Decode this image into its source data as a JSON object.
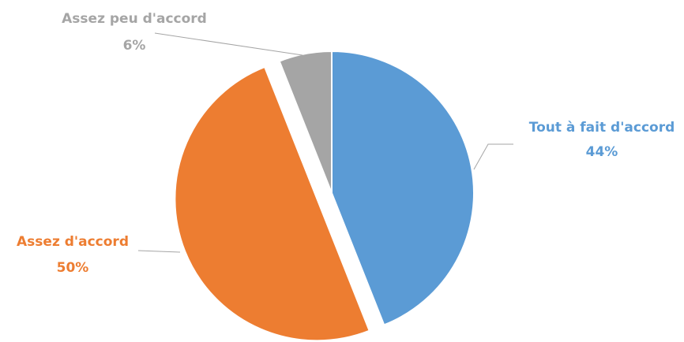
{
  "chart_data": {
    "type": "pie",
    "categories": [
      "Tout à fait d'accord",
      "Assez d'accord",
      "Assez peu d'accord"
    ],
    "values": [
      44,
      50,
      6
    ],
    "value_labels": [
      "44%",
      "50%",
      "6%"
    ],
    "colors": [
      "#5b9bd5",
      "#ed7d31",
      "#a5a5a5"
    ],
    "exploded": [
      false,
      true,
      false
    ]
  }
}
